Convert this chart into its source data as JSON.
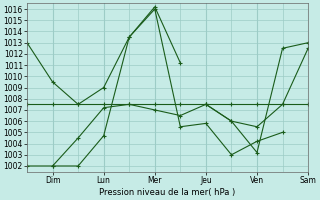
{
  "xlabel": "Pression niveau de la mer( hPa )",
  "ylim": [
    1001.5,
    1016.5
  ],
  "yticks": [
    1002,
    1003,
    1004,
    1005,
    1006,
    1007,
    1008,
    1009,
    1010,
    1011,
    1012,
    1013,
    1014,
    1015,
    1016
  ],
  "x_day_labels": [
    "Dim",
    "Lun",
    "Mer",
    "Jeu",
    "Ven",
    "Sam"
  ],
  "background_color": "#c6ebe6",
  "grid_color": "#9dccc6",
  "line_color": "#1a5c1a",
  "lines": [
    {
      "x": [
        0,
        1,
        2,
        3,
        4,
        5,
        6
      ],
      "y": [
        1013.0,
        1009.5,
        1007.5,
        1009.0,
        1013.5,
        1016.2,
        1011.2
      ]
    },
    {
      "x": [
        0,
        1,
        2,
        3,
        4,
        5,
        6,
        7,
        8,
        9,
        10,
        11
      ],
      "y": [
        1007.5,
        1007.5,
        1007.5,
        1007.5,
        1007.5,
        1007.5,
        1007.5,
        1007.5,
        1007.5,
        1007.5,
        1007.5,
        1007.5
      ]
    },
    {
      "x": [
        1,
        2,
        3,
        4,
        5,
        6,
        7,
        8,
        9,
        10
      ],
      "y": [
        1002.0,
        1002.0,
        1004.7,
        1013.5,
        1016.0,
        1005.5,
        1005.8,
        1003.0,
        1004.2,
        1005.0
      ]
    },
    {
      "x": [
        0,
        1,
        2,
        3,
        4,
        5,
        6,
        7,
        8,
        9,
        10,
        11
      ],
      "y": [
        1002.0,
        1002.0,
        1004.5,
        1007.2,
        1007.5,
        1007.0,
        1006.5,
        1007.5,
        1006.0,
        1005.5,
        1007.5,
        1012.5
      ]
    },
    {
      "x": [
        7,
        8,
        9,
        10,
        11
      ],
      "y": [
        1007.5,
        1006.0,
        1003.2,
        1012.5,
        1013.0
      ]
    }
  ],
  "day_x_positions": [
    1,
    3,
    5,
    7,
    9,
    11
  ],
  "xlim": [
    0,
    11
  ],
  "minor_grid_x": [
    0,
    1,
    2,
    3,
    4,
    5,
    6,
    7,
    8,
    9,
    10,
    11
  ]
}
